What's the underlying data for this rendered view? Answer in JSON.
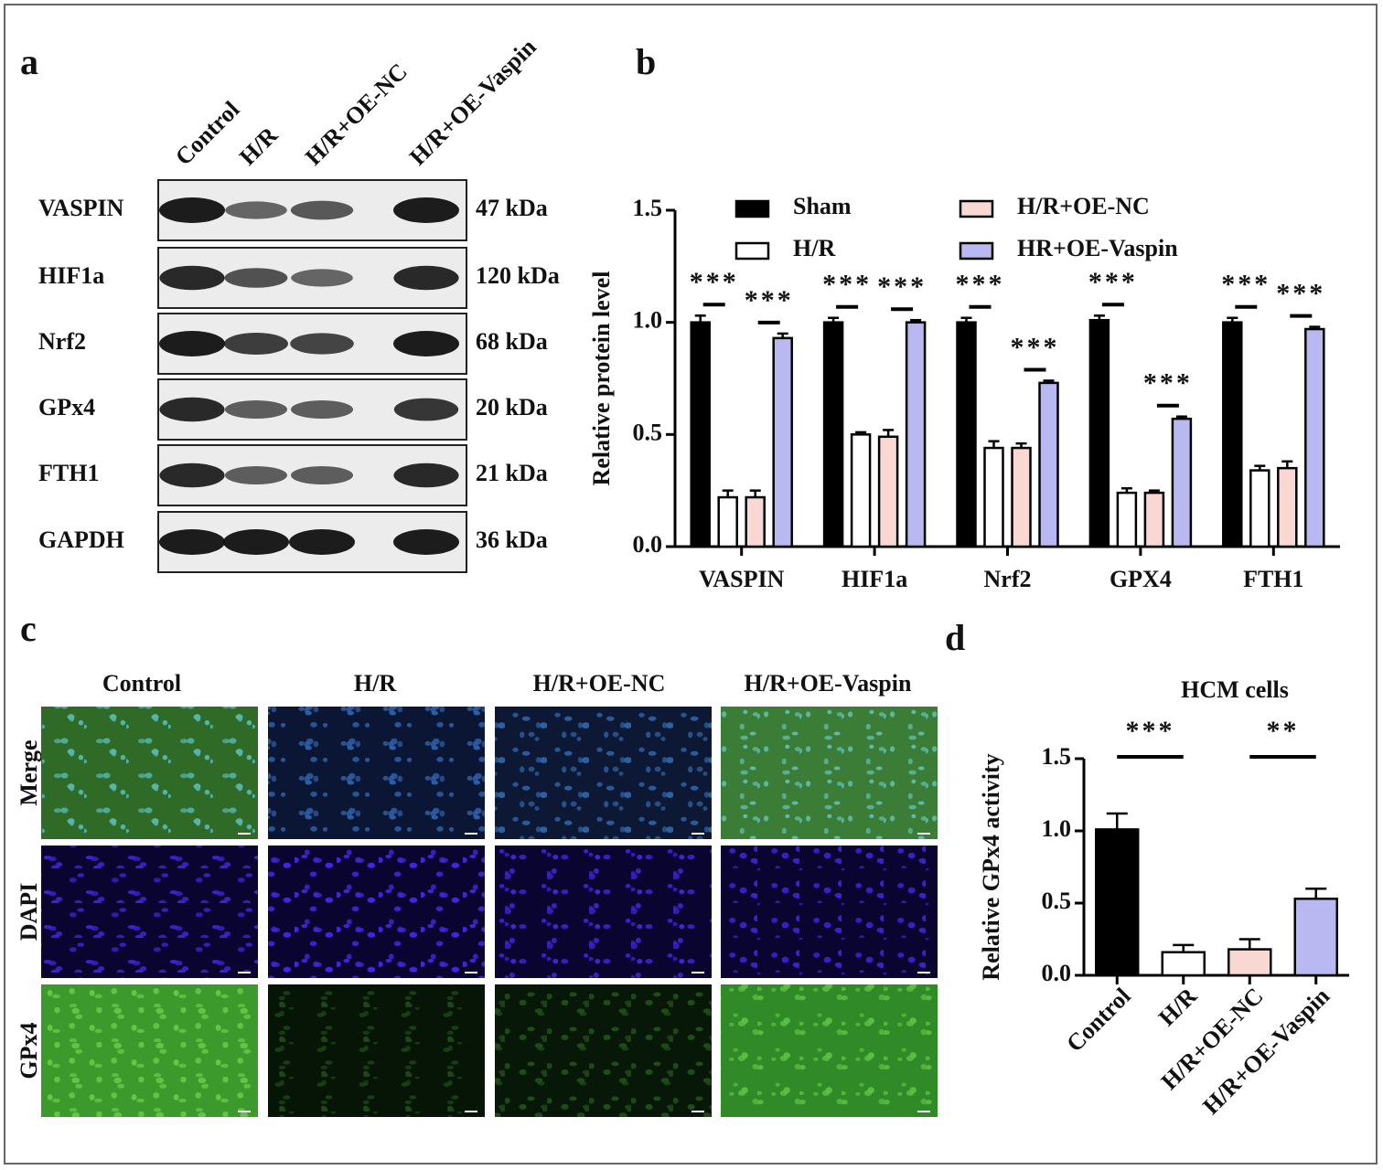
{
  "panels": {
    "a": {
      "label": "a",
      "lanes": [
        "Control",
        "H/R",
        "H/R+OE-NC",
        "H/R+OE-Vaspin"
      ],
      "proteins": [
        "VASPIN",
        "HIF1a",
        "Nrf2",
        "GPx4",
        "FTH1",
        "GAPDH"
      ],
      "sizes": [
        "47 kDa",
        "120 kDa",
        "68 kDa",
        "20 kDa",
        "21 kDa",
        "36 kDa"
      ]
    },
    "c": {
      "label": "c",
      "columns": [
        "Control",
        "H/R",
        "H/R+OE-NC",
        "H/R+OE-Vaspin"
      ],
      "rows": [
        "Merge",
        "DAPI",
        "GPx4"
      ]
    }
  },
  "chart_data": [
    {
      "type": "grouped-bar",
      "panel_label": "b",
      "y_label": "Relative protein level",
      "categories": [
        "VASPIN",
        "HIF1a",
        "Nrf2",
        "GPX4",
        "FTH1"
      ],
      "series": [
        {
          "name": "Sham",
          "color": "#000000",
          "values": [
            1.0,
            1.0,
            1.0,
            1.01,
            1.0
          ],
          "errors": [
            0.03,
            0.02,
            0.02,
            0.02,
            0.02
          ]
        },
        {
          "name": "H/R",
          "color": "#ffffff",
          "values": [
            0.22,
            0.5,
            0.44,
            0.24,
            0.34
          ],
          "errors": [
            0.03,
            0.01,
            0.03,
            0.02,
            0.02
          ]
        },
        {
          "name": "H/R+OE-NC",
          "color": "#f9d8d3",
          "values": [
            0.22,
            0.49,
            0.44,
            0.24,
            0.35
          ],
          "errors": [
            0.03,
            0.03,
            0.02,
            0.01,
            0.03
          ]
        },
        {
          "name": "HR+OE-Vaspin",
          "color": "#b9b8f0",
          "values": [
            0.93,
            1.0,
            0.73,
            0.57,
            0.97
          ],
          "errors": [
            0.02,
            0.01,
            0.01,
            0.01,
            0.01
          ]
        }
      ],
      "ylim": [
        0,
        1.5
      ],
      "yticks": [
        {
          "value": 0,
          "label": "0.0"
        },
        {
          "value": 0.5,
          "label": "0.5"
        },
        {
          "value": 1,
          "label": "1.0"
        },
        {
          "value": 1.5,
          "label": "1.5"
        }
      ],
      "legend": "top",
      "annotations": [
        {
          "text": "***",
          "category": "VASPIN",
          "between": [
            "Sham",
            "H/R"
          ]
        },
        {
          "text": "***",
          "category": "VASPIN",
          "between": [
            "H/R+OE-NC",
            "HR+OE-Vaspin"
          ]
        },
        {
          "text": "***",
          "category": "HIF1a",
          "between": [
            "Sham",
            "H/R"
          ]
        },
        {
          "text": "***",
          "category": "HIF1a",
          "between": [
            "H/R+OE-NC",
            "HR+OE-Vaspin"
          ]
        },
        {
          "text": "***",
          "category": "Nrf2",
          "between": [
            "Sham",
            "H/R"
          ]
        },
        {
          "text": "***",
          "category": "Nrf2",
          "between": [
            "H/R+OE-NC",
            "HR+OE-Vaspin"
          ]
        },
        {
          "text": "***",
          "category": "GPX4",
          "between": [
            "Sham",
            "H/R"
          ]
        },
        {
          "text": "***",
          "category": "GPX4",
          "between": [
            "H/R+OE-NC",
            "HR+OE-Vaspin"
          ]
        },
        {
          "text": "***",
          "category": "FTH1",
          "between": [
            "Sham",
            "H/R"
          ]
        },
        {
          "text": "***",
          "category": "FTH1",
          "between": [
            "H/R+OE-NC",
            "HR+OE-Vaspin"
          ]
        }
      ]
    },
    {
      "type": "bar",
      "panel_label": "d",
      "title": "HCM cells",
      "y_label": "Relative GPx4 activity",
      "categories": [
        "Control",
        "H/R",
        "H/R+OE-NC",
        "H/R+OE-Vaspin"
      ],
      "values": [
        1.01,
        0.16,
        0.18,
        0.53
      ],
      "errors": [
        0.11,
        0.05,
        0.07,
        0.07
      ],
      "colors": [
        "#000000",
        "#ffffff",
        "#f9d8d3",
        "#b9b8f0"
      ],
      "ylim": [
        0,
        1.5
      ],
      "yticks": [
        {
          "value": 0,
          "label": "0.0"
        },
        {
          "value": 0.5,
          "label": "0.5"
        },
        {
          "value": 1,
          "label": "1.0"
        },
        {
          "value": 1.5,
          "label": "1.5"
        }
      ],
      "annotations": [
        {
          "text": "***",
          "between": [
            "Control",
            "H/R"
          ]
        },
        {
          "text": "**",
          "between": [
            "H/R+OE-NC",
            "H/R+OE-Vaspin"
          ]
        }
      ]
    }
  ]
}
